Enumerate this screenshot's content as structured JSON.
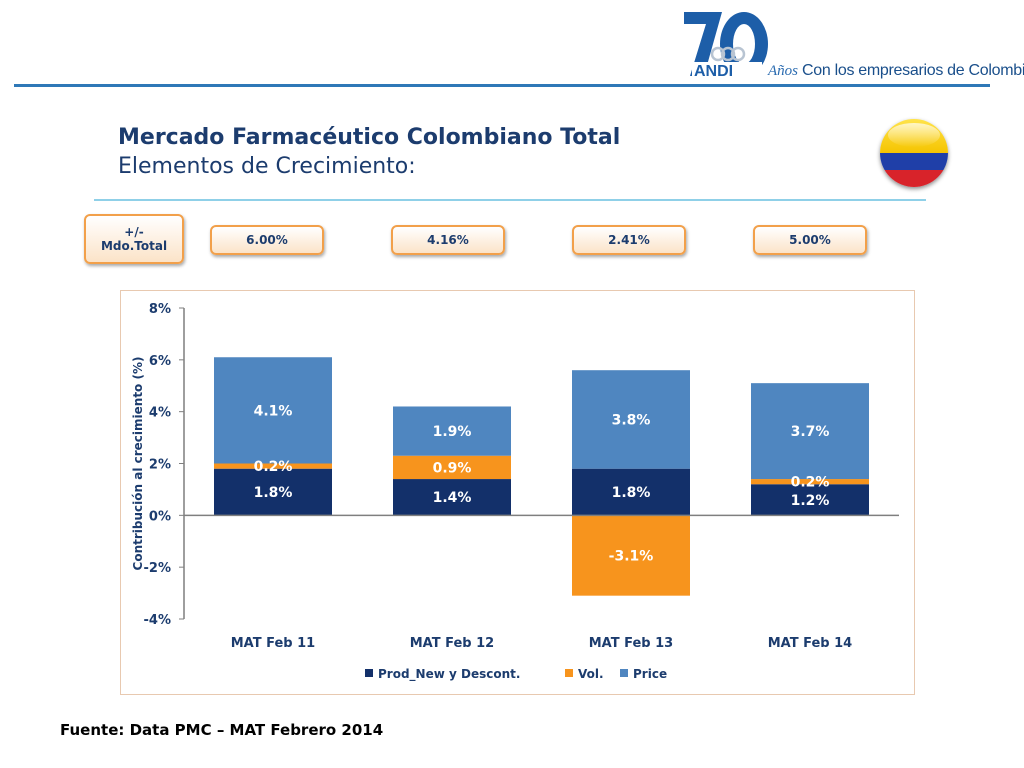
{
  "header": {
    "logo_number": "70",
    "logo_name": "ANDI",
    "logo_anos": "Años",
    "logo_slogan": "Con los empresarios de Colombia"
  },
  "slide": {
    "title": "Mercado Farmacéutico Colombiano Total",
    "subtitle": "Elementos de Crecimiento:"
  },
  "growth": {
    "label_line1": "+/-",
    "label_line2": "Mdo.Total",
    "values": [
      "6.00%",
      "4.16%",
      "2.41%",
      "5.00%"
    ]
  },
  "source": "Fuente: Data PMC – MAT Febrero 2014",
  "colors": {
    "prod_new": "#13306a",
    "vol": "#f7941d",
    "price": "#4f86c0",
    "title": "#1c3c6e"
  },
  "chart_data": {
    "type": "bar",
    "stacked": true,
    "categories": [
      "MAT Feb 11",
      "MAT Feb 12",
      "MAT Feb 13",
      "MAT Feb 14"
    ],
    "series": [
      {
        "name": "Prod_New  y  Descont.",
        "values": [
          1.8,
          1.4,
          1.8,
          1.2
        ],
        "labels": [
          "1.8%",
          "1.4%",
          "1.8%",
          "1.2%"
        ]
      },
      {
        "name": "Vol.",
        "values": [
          0.2,
          0.9,
          -3.1,
          0.2
        ],
        "labels": [
          "0.2%",
          "0.9%",
          "-3.1%",
          "0.2%"
        ]
      },
      {
        "name": "Price",
        "values": [
          4.1,
          1.9,
          3.8,
          3.7
        ],
        "labels": [
          "4.1%",
          "1.9%",
          "3.8%",
          "3.7%"
        ]
      }
    ],
    "ylabel": "Contribución al crecimiento (%)",
    "ylim": [
      -4,
      8
    ],
    "yticks": [
      "-4%",
      "-2%",
      "0%",
      "2%",
      "4%",
      "6%",
      "8%"
    ],
    "grid": false,
    "legend": "bottom"
  }
}
